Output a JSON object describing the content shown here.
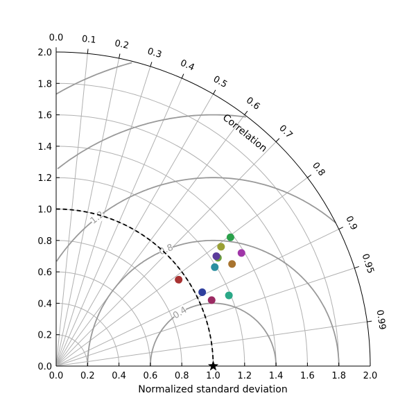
{
  "chart_data": {
    "type": "scatter",
    "subtype": "taylor-diagram",
    "title": "",
    "xlabel": "Normalized standard deviation",
    "ylabel": "",
    "correlation_label": "Correlation",
    "std_range": [
      0,
      2.0
    ],
    "std_ticks": [
      "0.0",
      "0.2",
      "0.4",
      "0.6",
      "0.8",
      "1.0",
      "1.2",
      "1.4",
      "1.6",
      "1.8",
      "2.0"
    ],
    "correlation_ticks": [
      "0.0",
      "0.1",
      "0.2",
      "0.3",
      "0.4",
      "0.5",
      "0.6",
      "0.7",
      "0.8",
      "0.9",
      "0.95",
      "0.99"
    ],
    "rms_contours": [
      "0.4",
      "0.8",
      "1.2",
      "1.6",
      "2.0"
    ],
    "reference_std": 1.0,
    "grid": true,
    "points": [
      {
        "x": 0.78,
        "y": 0.55,
        "color": "#a83232"
      },
      {
        "x": 0.93,
        "y": 0.47,
        "color": "#2f3f9e"
      },
      {
        "x": 0.99,
        "y": 0.42,
        "color": "#9b2a62"
      },
      {
        "x": 1.01,
        "y": 0.63,
        "color": "#2a8fa0"
      },
      {
        "x": 1.03,
        "y": 0.69,
        "color": "#6aa03a"
      },
      {
        "x": 1.02,
        "y": 0.7,
        "color": "#5b3b9b"
      },
      {
        "x": 1.05,
        "y": 0.76,
        "color": "#9aa035"
      },
      {
        "x": 1.11,
        "y": 0.82,
        "color": "#2aa04a"
      },
      {
        "x": 1.12,
        "y": 0.65,
        "color": "#a8742f"
      },
      {
        "x": 1.18,
        "y": 0.72,
        "color": "#a036a8"
      },
      {
        "x": 1.1,
        "y": 0.45,
        "color": "#2aa887"
      }
    ],
    "reference_point": {
      "x": 1.0,
      "y": 0.0
    }
  }
}
